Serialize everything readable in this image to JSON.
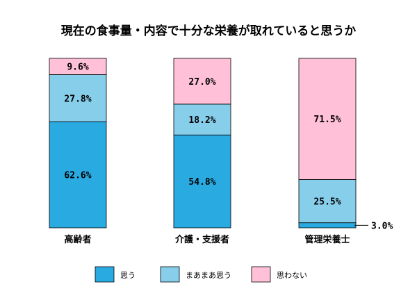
{
  "chart_data": {
    "type": "bar",
    "stacked": "percent",
    "title": "現在の食事量・内容で十分な栄養が取れていると思うか",
    "categories": [
      "高齢者",
      "介護・支援者",
      "管理栄養士"
    ],
    "series": [
      {
        "name": "思う",
        "values": [
          62.6,
          54.8,
          3.0
        ],
        "labels": [
          "62.6%",
          "54.8%",
          "3.0%"
        ],
        "color": "#29abe2"
      },
      {
        "name": "まあまあ思う",
        "values": [
          27.8,
          18.2,
          25.5
        ],
        "labels": [
          "27.8%",
          "18.2%",
          "25.5%"
        ],
        "color": "#87ceeb"
      },
      {
        "name": "思わない",
        "values": [
          9.6,
          27.0,
          71.5
        ],
        "labels": [
          "9.6%",
          "27.0%",
          "71.5%"
        ],
        "color": "#ffc0d8"
      }
    ],
    "ylim": [
      0,
      100
    ],
    "grid": false,
    "legend": "bottom"
  }
}
